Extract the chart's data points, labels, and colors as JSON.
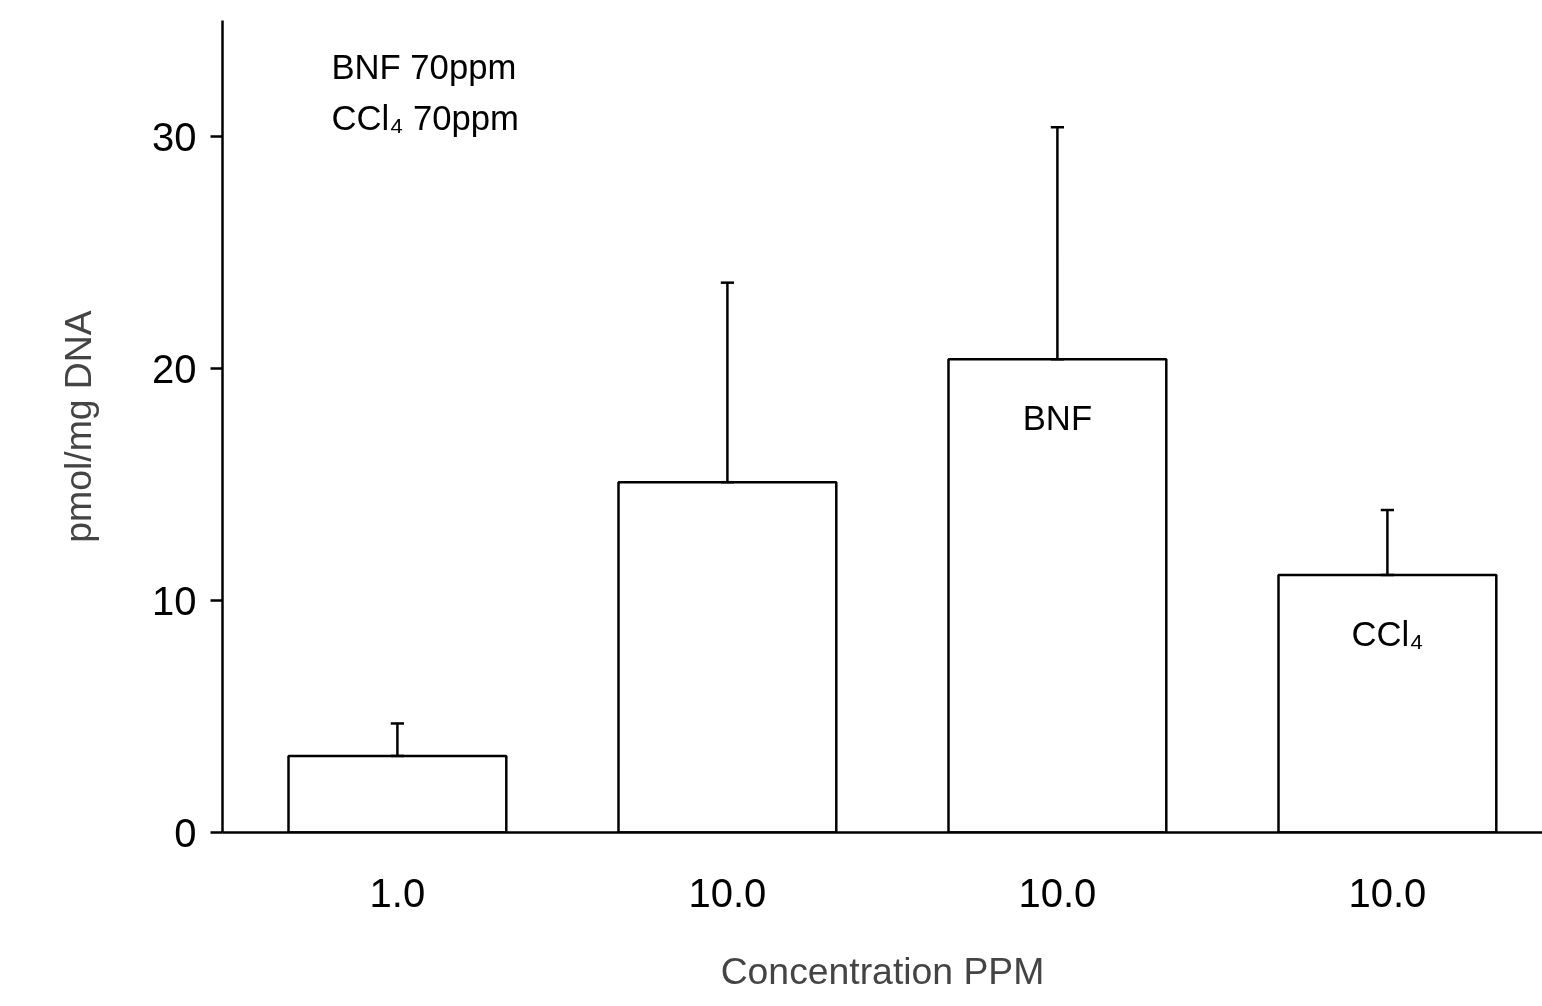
{
  "chart_data": {
    "type": "bar",
    "xlabel": "Concentration PPM",
    "ylabel": "pmol/mg DNA",
    "categories": [
      "1.0",
      "10.0",
      "10.0",
      "10.0"
    ],
    "values": [
      3.3,
      15.1,
      20.4,
      11.1
    ],
    "errors": [
      [
        3.3,
        4.7
      ],
      [
        15.1,
        23.7
      ],
      [
        20.4,
        30.4
      ],
      [
        11.1,
        13.9
      ]
    ],
    "color": "#ffffff",
    "ylim": [
      0,
      35
    ],
    "yticks": [
      0,
      10,
      20,
      30
    ],
    "grid": false,
    "annotations": [
      "BNF 70ppm",
      "CCl₄ 70ppm",
      "BNF",
      "CCl₄"
    ]
  }
}
